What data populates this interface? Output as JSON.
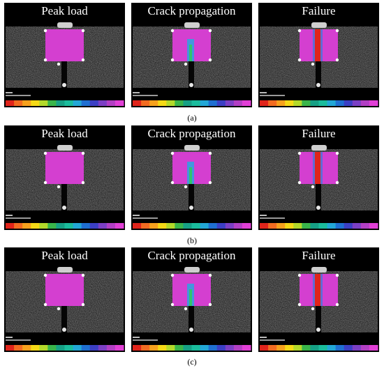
{
  "figure": {
    "rows": [
      {
        "caption": "(a)",
        "panels": [
          {
            "title": "Peak load",
            "stage": "peak"
          },
          {
            "title": "Crack propagation",
            "stage": "crack"
          },
          {
            "title": "Failure",
            "stage": "failure"
          }
        ]
      },
      {
        "caption": "(b)",
        "panels": [
          {
            "title": "Peak load",
            "stage": "peak"
          },
          {
            "title": "Crack propagation",
            "stage": "crack"
          },
          {
            "title": "Failure",
            "stage": "failure"
          }
        ]
      },
      {
        "caption": "(c)",
        "panels": [
          {
            "title": "Peak load",
            "stage": "peak"
          },
          {
            "title": "Crack propagation",
            "stage": "crack"
          },
          {
            "title": "Failure",
            "stage": "failure"
          }
        ]
      }
    ],
    "colorbar": [
      "#e0241b",
      "#f26b21",
      "#f7a11d",
      "#f5d916",
      "#b3d92a",
      "#39b54a",
      "#16a085",
      "#1abc9c",
      "#22a7d6",
      "#1f6fd1",
      "#3b3fc4",
      "#7b3fc4",
      "#b23fc4",
      "#e13fd6"
    ],
    "overlay_color": "#d43fd0"
  }
}
